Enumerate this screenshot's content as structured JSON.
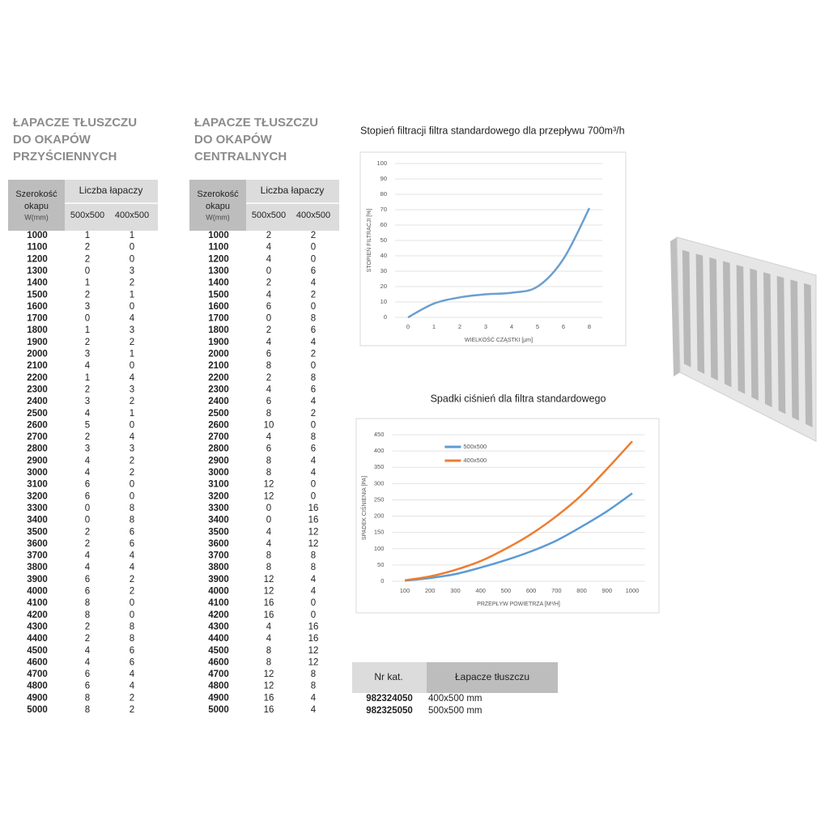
{
  "tables": [
    {
      "title_lines": [
        "ŁAPACZE TŁUSZCZU",
        "DO OKAPÓW",
        "PRZYŚCIENNYCH"
      ],
      "width_header": [
        "Szerokość",
        "okapu"
      ],
      "width_unit": "W(mm)",
      "count_header": "Liczba łapaczy",
      "columns": [
        "500x500",
        "400x500"
      ],
      "rows": [
        [
          1000,
          1,
          1
        ],
        [
          1100,
          2,
          0
        ],
        [
          1200,
          2,
          0
        ],
        [
          1300,
          0,
          3
        ],
        [
          1400,
          1,
          2
        ],
        [
          1500,
          2,
          1
        ],
        [
          1600,
          3,
          0
        ],
        [
          1700,
          0,
          4
        ],
        [
          1800,
          1,
          3
        ],
        [
          1900,
          2,
          2
        ],
        [
          2000,
          3,
          1
        ],
        [
          2100,
          4,
          0
        ],
        [
          2200,
          1,
          4
        ],
        [
          2300,
          2,
          3
        ],
        [
          2400,
          3,
          2
        ],
        [
          2500,
          4,
          1
        ],
        [
          2600,
          5,
          0
        ],
        [
          2700,
          2,
          4
        ],
        [
          2800,
          3,
          3
        ],
        [
          2900,
          4,
          2
        ],
        [
          3000,
          4,
          2
        ],
        [
          3100,
          6,
          0
        ],
        [
          3200,
          6,
          0
        ],
        [
          3300,
          0,
          8
        ],
        [
          3400,
          0,
          8
        ],
        [
          3500,
          2,
          6
        ],
        [
          3600,
          2,
          6
        ],
        [
          3700,
          4,
          4
        ],
        [
          3800,
          4,
          4
        ],
        [
          3900,
          6,
          2
        ],
        [
          4000,
          6,
          2
        ],
        [
          4100,
          8,
          0
        ],
        [
          4200,
          8,
          0
        ],
        [
          4300,
          2,
          8
        ],
        [
          4400,
          2,
          8
        ],
        [
          4500,
          4,
          6
        ],
        [
          4600,
          4,
          6
        ],
        [
          4700,
          6,
          4
        ],
        [
          4800,
          6,
          4
        ],
        [
          4900,
          8,
          2
        ],
        [
          5000,
          8,
          2
        ]
      ]
    },
    {
      "title_lines": [
        "ŁAPACZE TŁUSZCZU",
        "DO OKAPÓW",
        "CENTRALNYCH"
      ],
      "width_header": [
        "Szerokość",
        "okapu"
      ],
      "width_unit": "W(mm)",
      "count_header": "Liczba łapaczy",
      "columns": [
        "500x500",
        "400x500"
      ],
      "rows": [
        [
          1000,
          2,
          2
        ],
        [
          1100,
          4,
          0
        ],
        [
          1200,
          4,
          0
        ],
        [
          1300,
          0,
          6
        ],
        [
          1400,
          2,
          4
        ],
        [
          1500,
          4,
          2
        ],
        [
          1600,
          6,
          0
        ],
        [
          1700,
          0,
          8
        ],
        [
          1800,
          2,
          6
        ],
        [
          1900,
          4,
          4
        ],
        [
          2000,
          6,
          2
        ],
        [
          2100,
          8,
          0
        ],
        [
          2200,
          2,
          8
        ],
        [
          2300,
          4,
          6
        ],
        [
          2400,
          6,
          4
        ],
        [
          2500,
          8,
          2
        ],
        [
          2600,
          10,
          0
        ],
        [
          2700,
          4,
          8
        ],
        [
          2800,
          6,
          6
        ],
        [
          2900,
          8,
          4
        ],
        [
          3000,
          8,
          4
        ],
        [
          3100,
          12,
          0
        ],
        [
          3200,
          12,
          0
        ],
        [
          3300,
          0,
          16
        ],
        [
          3400,
          0,
          16
        ],
        [
          3500,
          4,
          12
        ],
        [
          3600,
          4,
          12
        ],
        [
          3700,
          8,
          8
        ],
        [
          3800,
          8,
          8
        ],
        [
          3900,
          12,
          4
        ],
        [
          4000,
          12,
          4
        ],
        [
          4100,
          16,
          0
        ],
        [
          4200,
          16,
          0
        ],
        [
          4300,
          4,
          16
        ],
        [
          4400,
          4,
          16
        ],
        [
          4500,
          8,
          12
        ],
        [
          4600,
          8,
          12
        ],
        [
          4700,
          12,
          8
        ],
        [
          4800,
          12,
          8
        ],
        [
          4900,
          16,
          4
        ],
        [
          5000,
          16,
          4
        ]
      ]
    }
  ],
  "chart_data": [
    {
      "type": "line",
      "title": "Stopień filtracji filtra standardowego dla przepływu 700m³/h",
      "x_label": "WIELKOŚĆ CZĄSTKI [µm]",
      "y_label": "STOPIEŃ FILTRACJI [%]",
      "categories": [
        "0",
        "1",
        "2",
        "3",
        "4",
        "5",
        "6",
        "8"
      ],
      "values": [
        0,
        9,
        13,
        15,
        16,
        20,
        38,
        71
      ],
      "color": "#6a9fd0",
      "ylim": [
        0,
        100
      ],
      "yticks": [
        0,
        10,
        20,
        30,
        40,
        50,
        60,
        70,
        80,
        90,
        100
      ],
      "grid": true,
      "smooth": true
    },
    {
      "type": "line",
      "title": "Spadki ciśnień dla filtra standardowego",
      "x_label": "PRZEPŁYW POWIETRZA [M³/H]",
      "y_label": "SPADEK CIŚNIENIA [PA]",
      "categories": [
        "100",
        "200",
        "300",
        "400",
        "500",
        "600",
        "700",
        "800",
        "900",
        "1000"
      ],
      "series": [
        {
          "name": "500x500",
          "color": "#5b9bd5",
          "values": [
            2,
            10,
            22,
            42,
            65,
            92,
            125,
            168,
            215,
            270
          ]
        },
        {
          "name": "400x500",
          "color": "#ed7d31",
          "values": [
            3,
            15,
            35,
            62,
            100,
            145,
            200,
            265,
            345,
            430
          ]
        }
      ],
      "ylim": [
        0,
        450
      ],
      "yticks": [
        0,
        50,
        100,
        150,
        200,
        250,
        300,
        350,
        400,
        450
      ],
      "grid": true,
      "smooth": true,
      "legend": "top-left"
    }
  ],
  "catalog": {
    "headers": [
      "Nr kat.",
      "Łapacze tłuszczu"
    ],
    "rows": [
      [
        "982324050",
        "400x500 mm"
      ],
      [
        "982325050",
        "500x500 mm"
      ]
    ]
  }
}
